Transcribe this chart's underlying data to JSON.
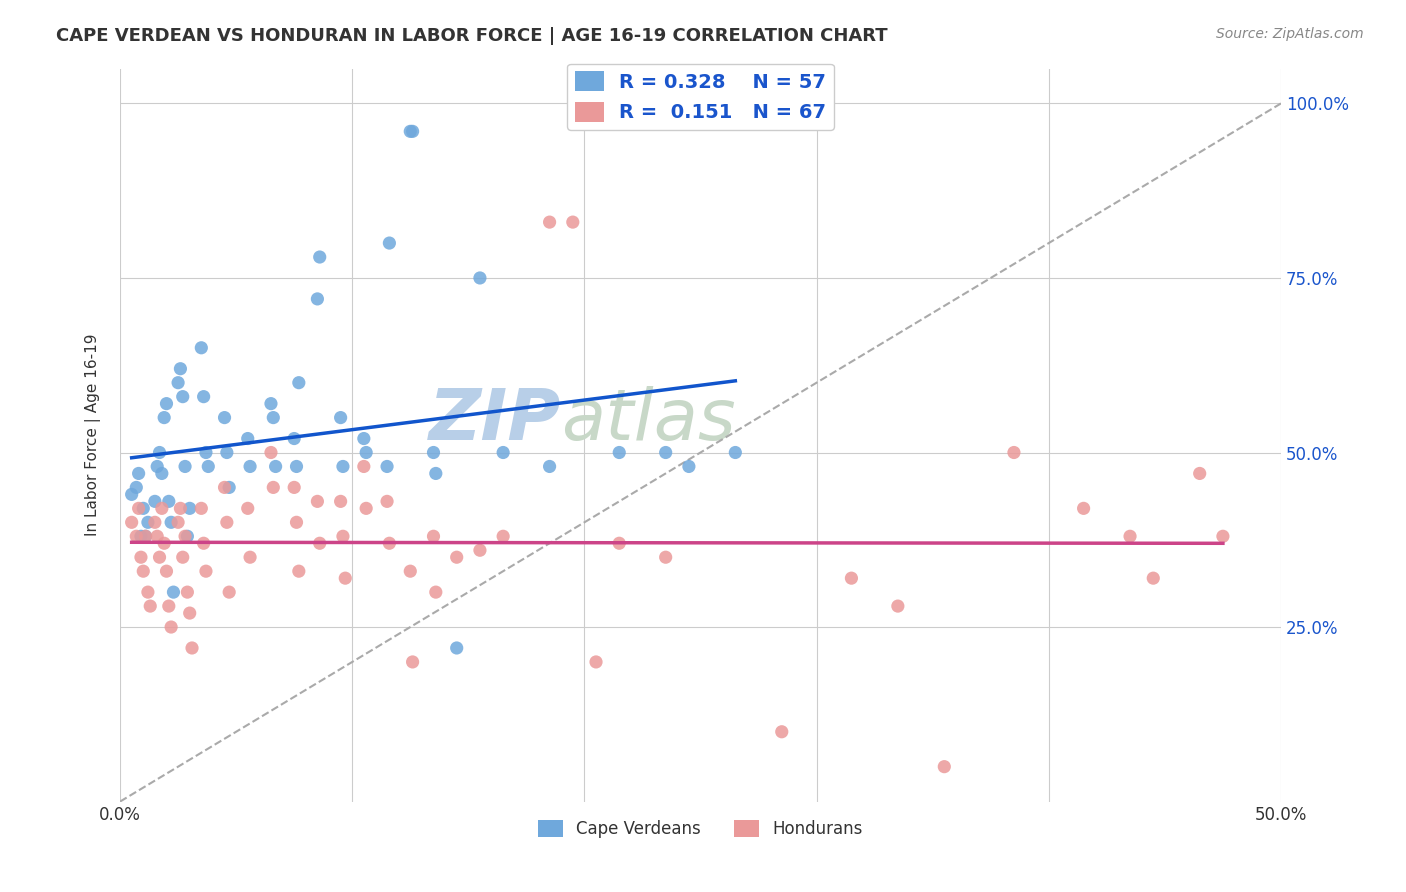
{
  "title": "CAPE VERDEAN VS HONDURAN IN LABOR FORCE | AGE 16-19 CORRELATION CHART",
  "source_text": "Source: ZipAtlas.com",
  "ylabel": "In Labor Force | Age 16-19",
  "xlim": [
    0.0,
    0.5
  ],
  "ylim": [
    0.0,
    1.05
  ],
  "R_cape": 0.328,
  "N_cape": 57,
  "R_honduran": 0.151,
  "N_honduran": 67,
  "cape_color": "#6fa8dc",
  "honduran_color": "#ea9999",
  "cape_line_color": "#1155cc",
  "honduran_line_color": "#cc4488",
  "dashed_line_color": "#aaaaaa",
  "watermark_zip": "ZIP",
  "watermark_atlas": "atlas",
  "watermark_color_zip": "#b8cfe8",
  "watermark_color_atlas": "#c8d8c8",
  "background_color": "#ffffff",
  "grid_color": "#cccccc",
  "cape_verdeans_x": [
    0.005,
    0.007,
    0.008,
    0.009,
    0.01,
    0.011,
    0.012,
    0.015,
    0.016,
    0.017,
    0.018,
    0.019,
    0.02,
    0.021,
    0.022,
    0.023,
    0.025,
    0.026,
    0.027,
    0.028,
    0.029,
    0.03,
    0.035,
    0.036,
    0.037,
    0.038,
    0.045,
    0.046,
    0.047,
    0.055,
    0.056,
    0.065,
    0.066,
    0.067,
    0.075,
    0.076,
    0.077,
    0.085,
    0.086,
    0.095,
    0.096,
    0.105,
    0.106,
    0.115,
    0.116,
    0.125,
    0.126,
    0.135,
    0.136,
    0.145,
    0.155,
    0.165,
    0.185,
    0.215,
    0.235,
    0.245,
    0.265
  ],
  "cape_verdeans_y": [
    0.44,
    0.45,
    0.47,
    0.38,
    0.42,
    0.38,
    0.4,
    0.43,
    0.48,
    0.5,
    0.47,
    0.55,
    0.57,
    0.43,
    0.4,
    0.3,
    0.6,
    0.62,
    0.58,
    0.48,
    0.38,
    0.42,
    0.65,
    0.58,
    0.5,
    0.48,
    0.55,
    0.5,
    0.45,
    0.52,
    0.48,
    0.57,
    0.55,
    0.48,
    0.52,
    0.48,
    0.6,
    0.72,
    0.78,
    0.55,
    0.48,
    0.52,
    0.5,
    0.48,
    0.8,
    0.96,
    0.96,
    0.5,
    0.47,
    0.22,
    0.75,
    0.5,
    0.48,
    0.5,
    0.5,
    0.48,
    0.5
  ],
  "hondurans_x": [
    0.005,
    0.007,
    0.008,
    0.009,
    0.01,
    0.011,
    0.012,
    0.013,
    0.015,
    0.016,
    0.017,
    0.018,
    0.019,
    0.02,
    0.021,
    0.022,
    0.025,
    0.026,
    0.027,
    0.028,
    0.029,
    0.03,
    0.031,
    0.035,
    0.036,
    0.037,
    0.045,
    0.046,
    0.047,
    0.055,
    0.056,
    0.065,
    0.066,
    0.075,
    0.076,
    0.077,
    0.085,
    0.086,
    0.095,
    0.096,
    0.097,
    0.105,
    0.106,
    0.115,
    0.116,
    0.125,
    0.126,
    0.135,
    0.136,
    0.145,
    0.155,
    0.165,
    0.185,
    0.195,
    0.205,
    0.215,
    0.235,
    0.285,
    0.315,
    0.335,
    0.355,
    0.385,
    0.415,
    0.435,
    0.445,
    0.465,
    0.475
  ],
  "hondurans_y": [
    0.4,
    0.38,
    0.42,
    0.35,
    0.33,
    0.38,
    0.3,
    0.28,
    0.4,
    0.38,
    0.35,
    0.42,
    0.37,
    0.33,
    0.28,
    0.25,
    0.4,
    0.42,
    0.35,
    0.38,
    0.3,
    0.27,
    0.22,
    0.42,
    0.37,
    0.33,
    0.45,
    0.4,
    0.3,
    0.42,
    0.35,
    0.5,
    0.45,
    0.45,
    0.4,
    0.33,
    0.43,
    0.37,
    0.43,
    0.38,
    0.32,
    0.48,
    0.42,
    0.43,
    0.37,
    0.33,
    0.2,
    0.38,
    0.3,
    0.35,
    0.36,
    0.38,
    0.83,
    0.83,
    0.2,
    0.37,
    0.35,
    0.1,
    0.32,
    0.28,
    0.05,
    0.5,
    0.42,
    0.38,
    0.32,
    0.47,
    0.38
  ]
}
